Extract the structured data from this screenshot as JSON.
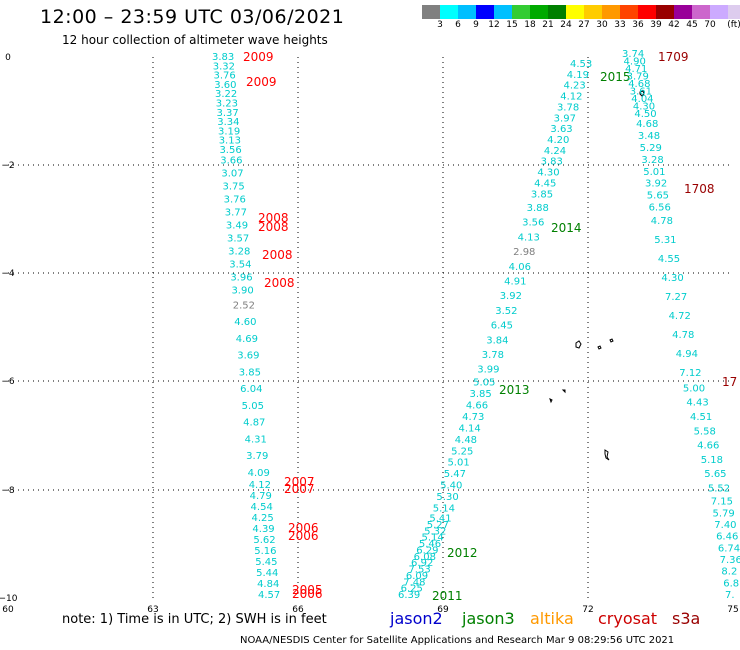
{
  "header": {
    "title": "12:00 – 23:59 UTC 03/06/2021",
    "subtitle": "12 hour collection of altimeter wave heights"
  },
  "legend": {
    "colors": [
      "#808080",
      "#00ffff",
      "#00bfff",
      "#0000ff",
      "#00c0ff",
      "#33cc33",
      "#00aa00",
      "#008000",
      "#ffff00",
      "#ffcc00",
      "#ff9900",
      "#ff4400",
      "#ff0000",
      "#990000",
      "#990099",
      "#cc66cc",
      "#ccaaff",
      "#ddccee",
      "#000000"
    ],
    "labels": [
      "3",
      "6",
      "9",
      "12",
      "15",
      "18",
      "21",
      "24",
      "27",
      "30",
      "33",
      "36",
      "39",
      "42",
      "45",
      "70",
      "(ft)"
    ]
  },
  "map": {
    "x_ticks": [
      "60",
      "63",
      "66",
      "69",
      "72",
      "75"
    ],
    "y_ticks": [
      "0",
      "−2",
      "−4",
      "−6",
      "−8",
      "−10"
    ]
  },
  "tracks": [
    {
      "id": "track-left",
      "labels": [
        {
          "text": "2009",
          "color": "#ff0000"
        },
        {
          "text": "2009",
          "color": "#ff0000"
        },
        {
          "text": "2008",
          "color": "#ff0000"
        },
        {
          "text": "2008",
          "color": "#ff0000"
        },
        {
          "text": "2008",
          "color": "#ff0000"
        },
        {
          "text": "2008",
          "color": "#ff0000"
        },
        {
          "text": "2007",
          "color": "#ff0000"
        },
        {
          "text": "2007",
          "color": "#ff0000"
        },
        {
          "text": "2006",
          "color": "#ff0000"
        },
        {
          "text": "2006",
          "color": "#ff0000"
        },
        {
          "text": "2005",
          "color": "#ff0000"
        },
        {
          "text": "2006",
          "color": "#ff0000"
        }
      ],
      "values": [
        "3.83",
        "3.32",
        "3.76",
        "3.60",
        "3.22",
        "3.23",
        "3.37",
        "3.34",
        "3.19",
        "3.13",
        "3.56",
        "3.66",
        "3.07",
        "3.75",
        "3.76",
        "3.77",
        "3.49",
        "3.57",
        "3.28",
        "3.54",
        "3.96",
        "3.90",
        "2.52",
        "4.60",
        "4.69",
        "3.69",
        "3.85",
        "6.04",
        "5.05",
        "4.87",
        "4.31",
        "3.79",
        "4.09",
        "4.12",
        "4.79",
        "4.54",
        "4.25",
        "4.39",
        "5.62",
        "5.16",
        "5.45",
        "5.44",
        "4.84",
        "4.57"
      ]
    },
    {
      "id": "track-middle",
      "labels": [
        {
          "text": "2015",
          "color": "#008000"
        },
        {
          "text": "2014",
          "color": "#008000"
        },
        {
          "text": "2013",
          "color": "#008000"
        },
        {
          "text": "2012",
          "color": "#008000"
        },
        {
          "text": "2011",
          "color": "#008000"
        }
      ],
      "values": [
        "4.53",
        "4.19",
        "4.23",
        "4.12",
        "3.78",
        "3.97",
        "3.63",
        "4.20",
        "4.24",
        "3.83",
        "4.30",
        "4.45",
        "3.85",
        "3.88",
        "3.56",
        "4.13",
        "2.98",
        "4.06",
        "4.91",
        "3.92",
        "3.52",
        "6.45",
        "3.84",
        "3.78",
        "3.99",
        "5.05",
        "3.85",
        "4.66",
        "4.73",
        "4.14",
        "4.48",
        "5.25",
        "5.01",
        "5.47",
        "5.40",
        "5.30",
        "5.14",
        "5.41",
        "5.27",
        "5.32",
        "5.14",
        "5.46",
        "6.29",
        "6.08",
        "6.92",
        "7.53",
        "6.09",
        "7.48",
        "6.25",
        "6.39"
      ]
    },
    {
      "id": "track-right",
      "labels": [
        {
          "text": "1709",
          "color": "#990000"
        },
        {
          "text": "1708",
          "color": "#990000"
        },
        {
          "text": "17",
          "color": "#990000"
        }
      ],
      "values": [
        "3.74",
        "4.90",
        "4.71",
        "3.79",
        "4.68",
        "3.61",
        "4.04",
        "4.30",
        "4.50",
        "4.68",
        "3.48",
        "5.29",
        "3.28",
        "5.01",
        "3.92",
        "5.65",
        "6.56",
        "4.78",
        "5.31",
        "4.55",
        "4.30",
        "7.27",
        "4.72",
        "4.78",
        "4.94",
        "7.12",
        "5.00",
        "4.43",
        "4.51",
        "5.58",
        "4.66",
        "5.18",
        "5.65",
        "5.52",
        "7.15",
        "5.79",
        "7.40",
        "6.46",
        "6.74",
        "7.36",
        "8.2",
        "6.8",
        "7."
      ]
    }
  ],
  "footer": {
    "note": "note:  1) Time is in UTC; 2) SWH is in feet",
    "satellites": [
      {
        "name": "jason2",
        "color": "#0000cc"
      },
      {
        "name": "jason3",
        "color": "#008000"
      },
      {
        "name": "altika",
        "color": "#ff9900"
      },
      {
        "name": "cryosat",
        "color": "#cc0000"
      },
      {
        "name": "s3a",
        "color": "#990000"
      }
    ],
    "credit": "NOAA/NESDIS Center for Satellite Applications and Research    Mar  9 08:29:56 UTC 2021"
  }
}
